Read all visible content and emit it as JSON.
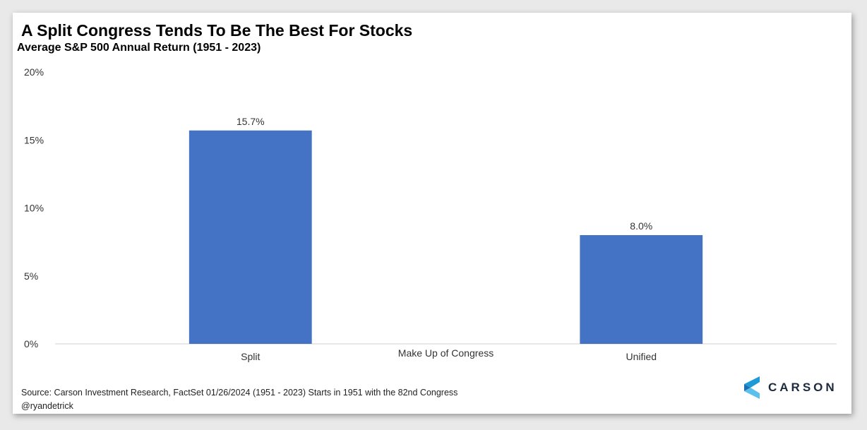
{
  "brand": {
    "name": "CARSON",
    "accent": "#1e9bd7",
    "dark": "#1b2a3e"
  },
  "footer": {
    "source": "Source: Carson Investment Research, FactSet   01/26/2024  (1951 - 2023)  Starts in 1951 with the 82nd Congress",
    "handle": "@ryandetrick"
  },
  "chart_data": {
    "type": "bar",
    "title": "A Split Congress Tends To Be The Best For Stocks",
    "subtitle": "Average S&P 500 Annual Return (1951 - 2023)",
    "xlabel": "Make Up of Congress",
    "ylabel": "",
    "categories": [
      "Split",
      "Unified"
    ],
    "values": [
      15.7,
      8.0
    ],
    "data_labels": [
      "15.7%",
      "8.0%"
    ],
    "ylim": [
      0,
      20
    ],
    "yticks": [
      0,
      5,
      10,
      15,
      20
    ],
    "ytick_labels": [
      "0%",
      "5%",
      "10%",
      "15%",
      "20%"
    ],
    "bar_color": "#4472c4",
    "grid": false,
    "legend": "none"
  }
}
